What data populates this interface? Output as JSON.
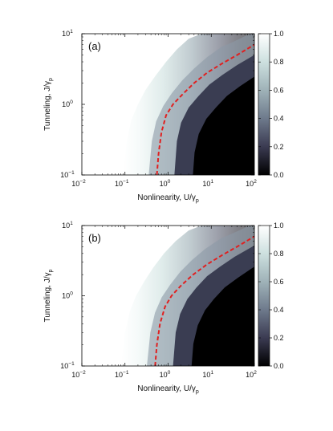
{
  "chart_data": [
    {
      "type": "heatmap",
      "panel_label": "(a)",
      "xlabel": "Nonlinearity, U/γ",
      "xlabel_sub": "p",
      "ylabel": "Tunneling, J/γ",
      "ylabel_sub": "p",
      "xscale": "log",
      "yscale": "log",
      "xlim": [
        0.01,
        100
      ],
      "ylim": [
        0.1,
        10
      ],
      "x_ticks": [
        {
          "base": "10",
          "exp": "−2"
        },
        {
          "base": "10",
          "exp": "−1"
        },
        {
          "base": "10",
          "exp": "0"
        },
        {
          "base": "10",
          "exp": "1"
        },
        {
          "base": "10",
          "exp": "2"
        }
      ],
      "y_ticks": [
        {
          "base": "10",
          "exp": "−1"
        },
        {
          "base": "10",
          "exp": "0"
        },
        {
          "base": "10",
          "exp": "1"
        }
      ],
      "colorbar": {
        "range": [
          0.0,
          1.0
        ],
        "ticks": [
          "0.0",
          "0.2",
          "0.4",
          "0.6",
          "0.8",
          "1.0"
        ],
        "colors": [
          "#000000",
          "#3b3b52",
          "#6e7a8c",
          "#9fb2b8",
          "#cde0df",
          "#ffffff"
        ]
      },
      "contour_line": {
        "style": "dashed",
        "color": "#e02020",
        "x": [
          0.55,
          0.6,
          0.7,
          0.9,
          1.3,
          2.2,
          4,
          8,
          18,
          40,
          100
        ],
        "y": [
          0.1,
          0.2,
          0.4,
          0.7,
          1.0,
          1.4,
          2.0,
          2.8,
          3.8,
          5.0,
          7.0
        ]
      },
      "boundaries": {
        "outer_x": [
          0.09,
          0.11,
          0.14,
          0.2,
          0.3,
          0.5,
          0.9,
          1.6,
          3,
          6
        ],
        "outer_y": [
          0.1,
          0.3,
          0.6,
          1.0,
          1.6,
          2.5,
          4,
          6,
          8.5,
          10
        ],
        "inner_x": [
          1.4,
          1.6,
          2,
          3,
          5,
          9,
          18,
          40,
          100
        ],
        "inner_y": [
          0.1,
          0.3,
          0.55,
          0.9,
          1.3,
          1.9,
          2.6,
          3.6,
          5
        ]
      }
    },
    {
      "type": "heatmap",
      "panel_label": "(b)",
      "xlabel": "Nonlinearity, U/γ",
      "xlabel_sub": "p",
      "ylabel": "Tunneling, J/γ",
      "ylabel_sub": "p",
      "xscale": "log",
      "yscale": "log",
      "xlim": [
        0.01,
        100
      ],
      "ylim": [
        0.1,
        10
      ],
      "x_ticks": [
        {
          "base": "10",
          "exp": "−2"
        },
        {
          "base": "10",
          "exp": "−1"
        },
        {
          "base": "10",
          "exp": "0"
        },
        {
          "base": "10",
          "exp": "1"
        },
        {
          "base": "10",
          "exp": "2"
        }
      ],
      "y_ticks": [
        {
          "base": "10",
          "exp": "−1"
        },
        {
          "base": "10",
          "exp": "0"
        },
        {
          "base": "10",
          "exp": "1"
        }
      ],
      "colorbar": {
        "range": [
          0.0,
          1.0
        ],
        "ticks": [
          "0.0",
          "0.2",
          "0.4",
          "0.6",
          "0.8",
          "1.0"
        ],
        "colors": [
          "#000000",
          "#3b3b52",
          "#6e7a8c",
          "#9fb2b8",
          "#cde0df",
          "#ffffff"
        ]
      },
      "contour_line": {
        "style": "dashed",
        "color": "#e02020",
        "x": [
          0.5,
          0.55,
          0.65,
          0.85,
          1.2,
          2.0,
          3.8,
          8,
          18,
          40,
          100
        ],
        "y": [
          0.1,
          0.2,
          0.4,
          0.7,
          1.0,
          1.4,
          2.0,
          2.8,
          3.8,
          5.0,
          7.0
        ]
      },
      "boundaries": {
        "outer_x": [
          0.08,
          0.1,
          0.13,
          0.18,
          0.28,
          0.45,
          0.8,
          1.5,
          3,
          6
        ],
        "outer_y": [
          0.1,
          0.3,
          0.6,
          1.0,
          1.6,
          2.5,
          4,
          6,
          8.5,
          10
        ],
        "inner_x": [
          1.3,
          1.5,
          1.9,
          2.8,
          4.5,
          8,
          16,
          35,
          100
        ],
        "inner_y": [
          0.1,
          0.3,
          0.55,
          0.9,
          1.3,
          1.9,
          2.6,
          3.6,
          5.2
        ]
      }
    }
  ]
}
